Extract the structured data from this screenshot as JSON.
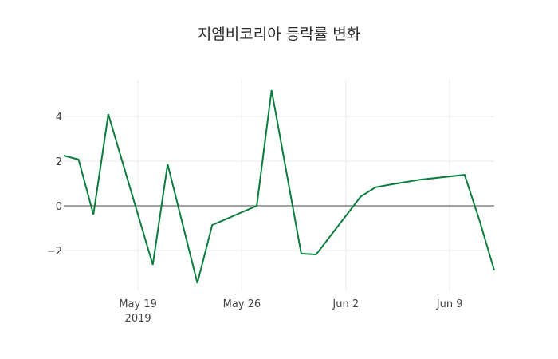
{
  "chart_data": {
    "type": "line",
    "title": "지엠비코리아 등락률 변화",
    "xlabel": "",
    "ylabel": "",
    "x": [
      "2019-05-14",
      "2019-05-15",
      "2019-05-16",
      "2019-05-17",
      "2019-05-20",
      "2019-05-21",
      "2019-05-23",
      "2019-05-24",
      "2019-05-27",
      "2019-05-28",
      "2019-05-30",
      "2019-05-31",
      "2019-06-03",
      "2019-06-04",
      "2019-06-05",
      "2019-06-07",
      "2019-06-10",
      "2019-06-11",
      "2019-06-12"
    ],
    "series": [
      {
        "name": "등락률",
        "color": "#0a7d3e",
        "values": [
          2.25,
          2.07,
          -0.39,
          4.1,
          -2.64,
          1.86,
          -3.46,
          -0.86,
          0.0,
          5.18,
          -2.14,
          -2.18,
          0.41,
          0.83,
          0.95,
          1.17,
          1.39,
          -0.64,
          -2.89
        ]
      }
    ],
    "x_ticks": [
      {
        "date": "2019-05-19",
        "label": "May 19",
        "sublabel": "2019"
      },
      {
        "date": "2019-05-26",
        "label": "May 26",
        "sublabel": ""
      },
      {
        "date": "2019-06-02",
        "label": "Jun 2",
        "sublabel": ""
      },
      {
        "date": "2019-06-09",
        "label": "Jun 9",
        "sublabel": ""
      }
    ],
    "y_ticks": [
      4,
      2,
      0,
      -2
    ],
    "y_tick_labels": [
      "4",
      "2",
      "0",
      "−2"
    ],
    "ylim": [
      -3.7,
      5.7
    ],
    "xlim": [
      "2019-05-14",
      "2019-06-12"
    ],
    "grid": true,
    "zero_line": true,
    "legend": null
  }
}
